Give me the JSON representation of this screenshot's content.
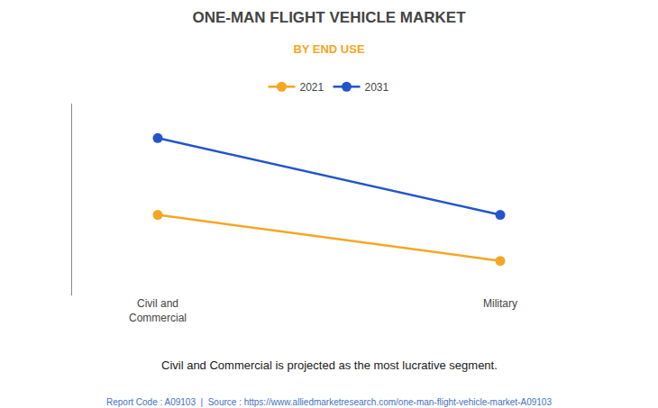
{
  "chart_data": {
    "type": "line",
    "title": "ONE-MAN FLIGHT VEHICLE MARKET",
    "subtitle": "BY END USE",
    "categories": [
      "Civil and\nCommercial",
      "Military"
    ],
    "series": [
      {
        "name": "2021",
        "color": "#F5A623",
        "marker": "circle",
        "values": [
          0.42,
          0.18
        ]
      },
      {
        "name": "2031",
        "color": "#2255CC",
        "marker": "circle",
        "values": [
          0.82,
          0.42
        ]
      }
    ],
    "ylim": [
      0.0,
      1.0
    ],
    "grid": false,
    "tick_labels": "x",
    "legend": "top",
    "annotations": [
      "Civil and Commercial is projected as the most lucrative segment.",
      "Report Code : A09103  |  Source : https://www.alliedmarketresearch.com/one-man-flight-vehicle-market-A09103"
    ]
  }
}
